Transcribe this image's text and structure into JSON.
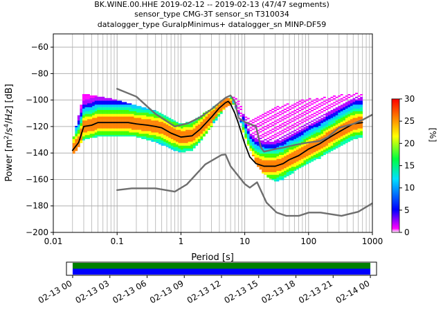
{
  "title": {
    "line1": "BK.WINE.00.HHE   2019-02-12 -- 2019-02-13  (47/47 segments)",
    "line2": "sensor_type CMG-3T sensor_sn T310034",
    "line3": "datalogger_type GuralpMinimus+ datalogger_sn MINP-DF59"
  },
  "colors": {
    "model_curve": "#6e6e6e",
    "mean_curve": "#000000",
    "grid": "#b0b0b0",
    "coverage_top": "#008000",
    "coverage_bottom": "#0000ff"
  },
  "chart_data": [
    {
      "type": "heatmap",
      "title": "BK.WINE.00.HHE   2019-02-12 -- 2019-02-13  (47/47 segments)",
      "xlabel": "Period [s]",
      "ylabel": "Power [m²/s⁴/Hz] [dB]",
      "x_scale": "log",
      "xlim": [
        0.01,
        1000
      ],
      "ylim": [
        -200,
        -50
      ],
      "x_ticks": [
        0.01,
        0.1,
        1,
        10,
        100,
        1000
      ],
      "x_tick_labels": [
        "0.01",
        "0.1",
        "1",
        "10",
        "100",
        "1000"
      ],
      "y_ticks": [
        -200,
        -180,
        -160,
        -140,
        -120,
        -100,
        -80,
        -60
      ],
      "y_tick_labels": [
        "−200",
        "−180",
        "−160",
        "−140",
        "−120",
        "−100",
        "−80",
        "−60"
      ],
      "grid": true,
      "colorbar": {
        "label": "[%]",
        "range": [
          0,
          30
        ],
        "ticks": [
          0,
          5,
          10,
          15,
          20,
          25,
          30
        ],
        "tick_labels": [
          "0",
          "5",
          "10",
          "15",
          "20",
          "25",
          "30"
        ]
      },
      "density_band": {
        "period": [
          0.02,
          0.03,
          0.05,
          0.1,
          0.2,
          0.4,
          0.7,
          1,
          1.5,
          2,
          3,
          4,
          5,
          6,
          7,
          8,
          10,
          15,
          20,
          30,
          40,
          60,
          100,
          150,
          200,
          300,
          500,
          700
        ],
        "lower_db": [
          -142,
          -130,
          -128,
          -127,
          -128,
          -132,
          -137,
          -140,
          -138,
          -132,
          -120,
          -112,
          -106,
          -103,
          -104,
          -112,
          -128,
          -148,
          -156,
          -162,
          -160,
          -154,
          -148,
          -144,
          -140,
          -136,
          -130,
          -128
        ],
        "upper_db": [
          -132,
          -95,
          -97,
          -100,
          -104,
          -108,
          -114,
          -118,
          -116,
          -112,
          -106,
          -102,
          -99,
          -98,
          -98,
          -100,
          -112,
          -114,
          -108,
          -105,
          -104,
          -101,
          -99,
          -98,
          -97,
          -96,
          -95,
          -95
        ]
      },
      "series": [
        {
          "name": "",
          "style": "mean",
          "x": [
            0.02,
            0.025,
            0.03,
            0.04,
            0.05,
            0.07,
            0.1,
            0.15,
            0.2,
            0.3,
            0.4,
            0.5,
            0.7,
            1,
            1.5,
            2,
            3,
            4,
            5,
            5.5,
            6,
            7,
            8,
            10,
            12,
            15,
            20,
            30,
            40,
            50,
            70,
            100,
            150,
            200,
            300,
            500,
            700
          ],
          "y": [
            -138,
            -132,
            -120,
            -119,
            -117,
            -117,
            -117,
            -117,
            -118,
            -119,
            -120,
            -121,
            -125,
            -128,
            -127,
            -122,
            -113,
            -106,
            -102,
            -101,
            -103,
            -110,
            -118,
            -133,
            -143,
            -148,
            -150,
            -150,
            -148,
            -145,
            -142,
            -137,
            -133,
            -129,
            -124,
            -118,
            -117
          ]
        },
        {
          "name": "",
          "style": "model",
          "x": [
            0.1,
            0.2,
            0.4,
            0.8,
            1.3,
            2,
            3,
            4,
            5,
            6,
            7,
            8,
            10,
            15,
            18,
            20,
            30,
            40,
            60,
            100,
            150,
            200,
            300,
            500,
            700,
            1000
          ],
          "y": [
            -91.5,
            -97.4,
            -110.5,
            -120,
            -117.5,
            -113,
            -107,
            -102,
            -98.3,
            -96.5,
            -101.4,
            -113.5,
            -116.6,
            -120,
            -136,
            -139,
            -137,
            -136,
            -134,
            -132,
            -131,
            -128,
            -121,
            -118,
            -115,
            -111
          ]
        },
        {
          "name": "",
          "style": "model",
          "x": [
            0.1,
            0.17,
            0.4,
            0.8,
            1.24,
            2.4,
            4.3,
            5.0,
            6.0,
            10,
            12,
            15.6,
            21.9,
            31.6,
            45,
            70,
            101,
            154,
            328,
            600,
            1000
          ],
          "y": [
            -168,
            -166.7,
            -166.7,
            -169.2,
            -163.7,
            -148.6,
            -141.5,
            -141.1,
            -150,
            -163.4,
            -166.2,
            -162.1,
            -177.5,
            -185,
            -187.5,
            -187.5,
            -185,
            -185,
            -187.5,
            -184.4,
            -178
          ]
        }
      ]
    },
    {
      "type": "bar",
      "title": "",
      "xlabel": "",
      "ylabel": "",
      "x_tick_labels": [
        "02-13 00",
        "02-13 03",
        "02-13 06",
        "02-13 09",
        "02-13 12",
        "02-13 15",
        "02-13 18",
        "02-13 21",
        "02-14 00"
      ],
      "x_range_hours": [
        -0.5,
        24.5
      ],
      "coverage": [
        {
          "name": "",
          "start_hour": 0,
          "end_hour": 24,
          "color": "#008000"
        },
        {
          "name": "",
          "start_hour": 0,
          "end_hour": 24,
          "color": "#0000ff"
        }
      ]
    }
  ]
}
